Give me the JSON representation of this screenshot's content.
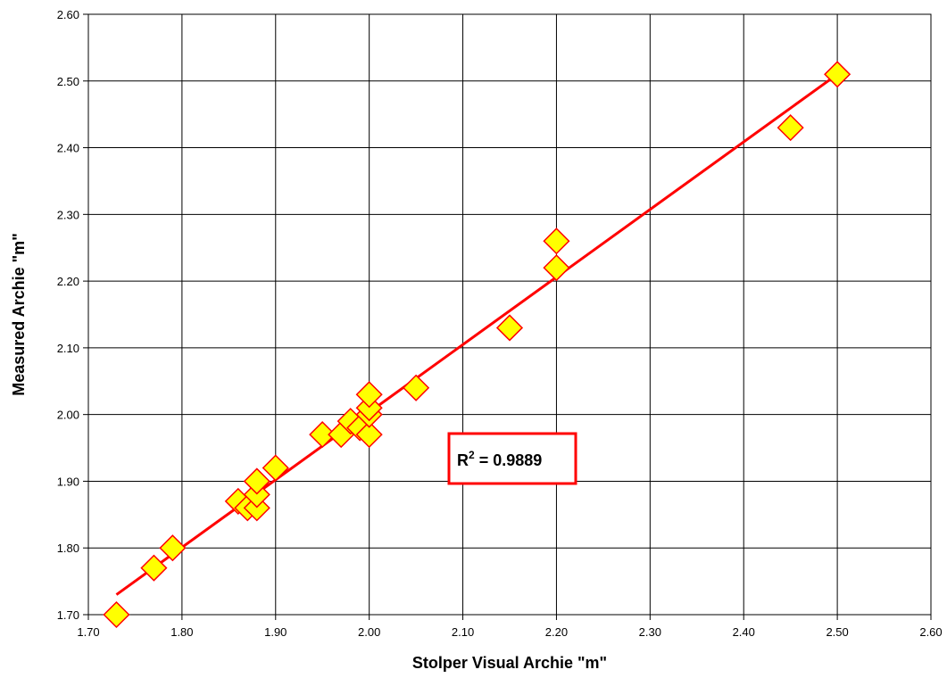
{
  "chart_data": {
    "type": "scatter",
    "title": "",
    "xlabel": "Stolper Visual Archie \"m\"",
    "ylabel": "Measured Archie \"m\"",
    "xlim": [
      1.7,
      2.6
    ],
    "ylim": [
      1.7,
      2.6
    ],
    "x_ticks": [
      "1.70",
      "1.80",
      "1.90",
      "2.00",
      "2.10",
      "2.20",
      "2.30",
      "2.40",
      "2.50",
      "2.60"
    ],
    "y_ticks": [
      "1.70",
      "1.80",
      "1.90",
      "2.00",
      "2.10",
      "2.20",
      "2.30",
      "2.40",
      "2.50",
      "2.60"
    ],
    "grid": true,
    "legend": "none",
    "series": [
      {
        "marker": "diamond",
        "fill_color": "#ffff00",
        "edge_color": "#ff0000",
        "points": [
          {
            "x": 1.73,
            "y": 1.7
          },
          {
            "x": 1.77,
            "y": 1.77
          },
          {
            "x": 1.79,
            "y": 1.8
          },
          {
            "x": 1.86,
            "y": 1.87
          },
          {
            "x": 1.87,
            "y": 1.86
          },
          {
            "x": 1.88,
            "y": 1.86
          },
          {
            "x": 1.88,
            "y": 1.88
          },
          {
            "x": 1.88,
            "y": 1.9
          },
          {
            "x": 1.9,
            "y": 1.92
          },
          {
            "x": 1.95,
            "y": 1.97
          },
          {
            "x": 1.97,
            "y": 1.97
          },
          {
            "x": 1.98,
            "y": 1.99
          },
          {
            "x": 1.99,
            "y": 1.98
          },
          {
            "x": 2.0,
            "y": 1.97
          },
          {
            "x": 2.0,
            "y": 2.0
          },
          {
            "x": 2.0,
            "y": 2.01
          },
          {
            "x": 2.0,
            "y": 2.03
          },
          {
            "x": 2.05,
            "y": 2.04
          },
          {
            "x": 2.15,
            "y": 2.13
          },
          {
            "x": 2.2,
            "y": 2.22
          },
          {
            "x": 2.2,
            "y": 2.26
          },
          {
            "x": 2.45,
            "y": 2.43
          },
          {
            "x": 2.5,
            "y": 2.51
          }
        ]
      }
    ],
    "trendline": {
      "type": "linear",
      "color": "#ff0000",
      "from": {
        "x": 1.73,
        "y": 1.73
      },
      "to": {
        "x": 2.5,
        "y": 2.51
      }
    },
    "annotation": {
      "r2_prefix": "R",
      "r2_superscript": "2",
      "r2_value": " = 0.9889",
      "border_color": "#ff0000"
    }
  }
}
